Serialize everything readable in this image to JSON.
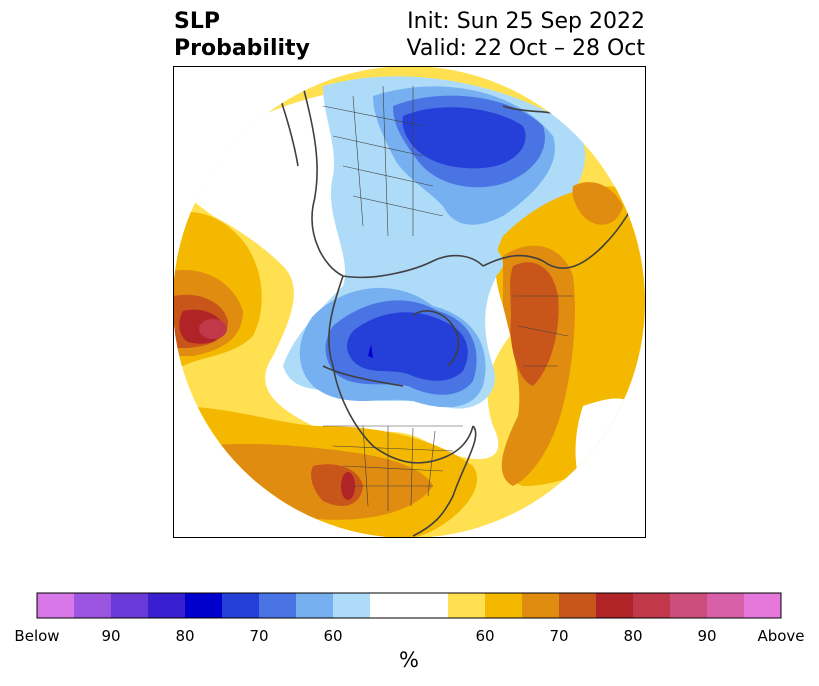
{
  "title": {
    "left_line1": "SLP",
    "left_line2": "Probability",
    "right_line1": "Init: Sun 25 Sep 2022",
    "right_line2": "Valid: 22 Oct – 28 Oct"
  },
  "colorbar": {
    "labels": [
      "Below",
      "90",
      "80",
      "70",
      "60",
      "60",
      "70",
      "80",
      "90",
      "Above"
    ],
    "unit": "%",
    "below_colors": [
      "#d878e8",
      "#9b55e0",
      "#6a3ad8",
      "#3a1fd0",
      "#0000cc",
      "#2540d8",
      "#4a74e4",
      "#76b0f0",
      "#aedcf8"
    ],
    "neutral_color": "#ffffff",
    "above_colors": [
      "#ffe050",
      "#f5b800",
      "#e08c10",
      "#c8561a",
      "#b02428",
      "#c0384a",
      "#cc4e7a",
      "#d860a8",
      "#e678dc"
    ]
  },
  "map": {
    "projection": "polar-stereographic-north",
    "coastline_color": "#404040"
  }
}
